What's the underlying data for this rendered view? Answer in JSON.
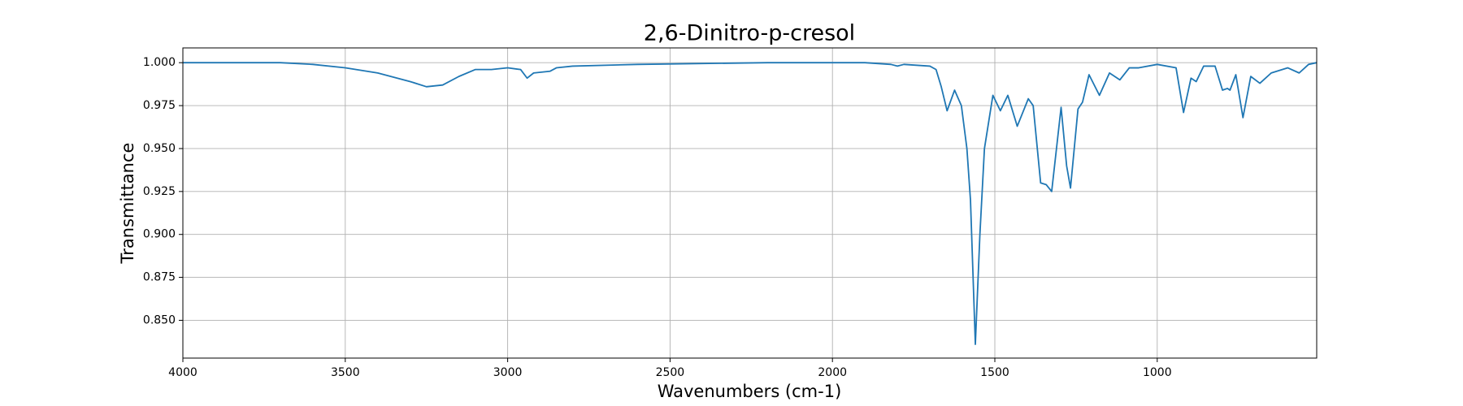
{
  "chart_data": {
    "type": "line",
    "title": "2,6-Dinitro-p-cresol",
    "xlabel": "Wavenumbers (cm-1)",
    "ylabel": "Transmittance",
    "color": "#1f77b4",
    "grid": true,
    "xlim": [
      4000,
      509
    ],
    "ylim": [
      0.828,
      1.0086
    ],
    "xticks": [
      4000,
      3500,
      3000,
      2500,
      2000,
      1500,
      1000
    ],
    "yticks": [
      {
        "value": 0.85,
        "label": "0.850"
      },
      0.875,
      {
        "value": 0.9,
        "label": "0.900"
      },
      0.925,
      {
        "value": 0.95,
        "label": "0.950"
      },
      0.975,
      {
        "value": 1,
        "label": "1.000"
      }
    ],
    "x": [
      4000,
      3700,
      3600,
      3500,
      3400,
      3300,
      3250,
      3200,
      3150,
      3100,
      3050,
      3000,
      2960,
      2940,
      2920,
      2870,
      2850,
      2800,
      2600,
      2200,
      1900,
      1820,
      1800,
      1780,
      1700,
      1681,
      1665,
      1647,
      1624,
      1603,
      1586,
      1575,
      1560,
      1546,
      1532,
      1506,
      1483,
      1460,
      1431,
      1397,
      1382,
      1359,
      1342,
      1325,
      1296,
      1279,
      1267,
      1244,
      1230,
      1210,
      1178,
      1147,
      1115,
      1086,
      1057,
      1000,
      942,
      919,
      896,
      880,
      857,
      822,
      799,
      784,
      776,
      758,
      736,
      712,
      684,
      649,
      598,
      563,
      534,
      509
    ],
    "values": [
      1.0,
      1.0,
      0.999,
      0.997,
      0.994,
      0.989,
      0.986,
      0.987,
      0.992,
      0.996,
      0.996,
      0.997,
      0.996,
      0.991,
      0.994,
      0.995,
      0.997,
      0.998,
      0.999,
      1.0,
      1.0,
      0.999,
      0.998,
      0.999,
      0.998,
      0.996,
      0.986,
      0.972,
      0.984,
      0.975,
      0.95,
      0.92,
      0.836,
      0.9,
      0.95,
      0.981,
      0.972,
      0.981,
      0.963,
      0.979,
      0.975,
      0.93,
      0.929,
      0.925,
      0.974,
      0.94,
      0.927,
      0.973,
      0.977,
      0.993,
      0.981,
      0.994,
      0.99,
      0.997,
      0.997,
      0.999,
      0.997,
      0.971,
      0.991,
      0.989,
      0.998,
      0.998,
      0.984,
      0.985,
      0.984,
      0.993,
      0.968,
      0.992,
      0.988,
      0.994,
      0.997,
      0.994,
      0.999,
      1.0
    ]
  }
}
